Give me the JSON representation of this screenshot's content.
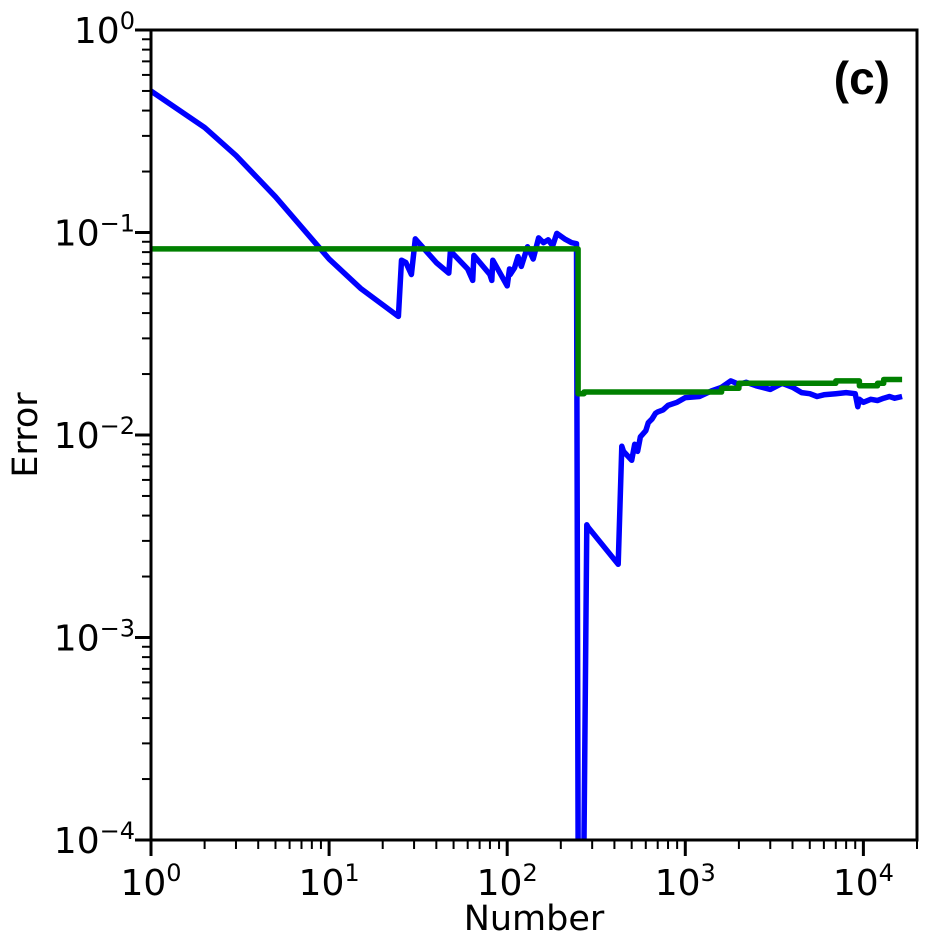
{
  "chart_data": {
    "type": "line",
    "panel_label": "(c)",
    "xlabel": "Number",
    "ylabel": "Error",
    "xscale": "log",
    "yscale": "log",
    "xlim": [
      1,
      20000
    ],
    "ylim": [
      0.0001,
      1
    ],
    "xticks": [
      {
        "value": 1,
        "base": "10",
        "exp": "0"
      },
      {
        "value": 10,
        "base": "10",
        "exp": "1"
      },
      {
        "value": 100,
        "base": "10",
        "exp": "2"
      },
      {
        "value": 1000,
        "base": "10",
        "exp": "3"
      },
      {
        "value": 10000,
        "base": "10",
        "exp": "4"
      }
    ],
    "yticks": [
      {
        "value": 1,
        "base": "10",
        "exp": "0"
      },
      {
        "value": 0.1,
        "base": "10",
        "exp": "−1"
      },
      {
        "value": 0.01,
        "base": "10",
        "exp": "−2"
      },
      {
        "value": 0.001,
        "base": "10",
        "exp": "−3"
      },
      {
        "value": 0.0001,
        "base": "10",
        "exp": "−4"
      }
    ],
    "grid": false,
    "series": [
      {
        "color": "#0000ff",
        "x": [
          1,
          2,
          3,
          5,
          10,
          15,
          24.5,
          25.5,
          27,
          29,
          30.5,
          40,
          47,
          48,
          60,
          64,
          65,
          80,
          82,
          83,
          100,
          103,
          104,
          110,
          115,
          120,
          130,
          140,
          150,
          160,
          170,
          180,
          190,
          210,
          230,
          245,
          250,
          255,
          260,
          270,
          280,
          285,
          420,
          430,
          440,
          450,
          500,
          520,
          540,
          560,
          600,
          620,
          650,
          680,
          700,
          750,
          800,
          900,
          1000,
          1200,
          1400,
          1600,
          1800,
          2000,
          2200,
          2500,
          3000,
          3500,
          4000,
          4500,
          5000,
          5500,
          6000,
          7000,
          8000,
          9000,
          9300,
          9500,
          10000,
          11000,
          12000,
          13000,
          14000,
          15000,
          16500
        ],
        "y": [
          0.5,
          0.33,
          0.24,
          0.15,
          0.074,
          0.053,
          0.0385,
          0.073,
          0.071,
          0.062,
          0.093,
          0.071,
          0.063,
          0.081,
          0.066,
          0.058,
          0.077,
          0.062,
          0.058,
          0.073,
          0.0545,
          0.066,
          0.062,
          0.067,
          0.076,
          0.068,
          0.085,
          0.074,
          0.094,
          0.089,
          0.092,
          0.086,
          0.099,
          0.093,
          0.089,
          0.088,
          0.0001,
          5e-05,
          5e-05,
          0.0001,
          0.0036,
          0.0035,
          0.0023,
          0.0045,
          0.0088,
          0.0083,
          0.0075,
          0.009,
          0.0083,
          0.0098,
          0.0105,
          0.0115,
          0.012,
          0.0128,
          0.013,
          0.0133,
          0.014,
          0.0145,
          0.0153,
          0.0155,
          0.0165,
          0.0172,
          0.0185,
          0.0178,
          0.0182,
          0.0175,
          0.0168,
          0.018,
          0.0172,
          0.0162,
          0.016,
          0.0155,
          0.0158,
          0.016,
          0.0162,
          0.016,
          0.0138,
          0.015,
          0.0145,
          0.015,
          0.0148,
          0.0152,
          0.0155,
          0.0152,
          0.0155
        ]
      },
      {
        "color": "#008000",
        "x": [
          1,
          250,
          250,
          270,
          270,
          1600,
          1600,
          2000,
          2000,
          7000,
          7000,
          9500,
          9500,
          12000,
          12000,
          13000,
          13000,
          16500
        ],
        "y": [
          0.083,
          0.083,
          0.016,
          0.016,
          0.0163,
          0.0163,
          0.017,
          0.017,
          0.018,
          0.018,
          0.0185,
          0.0185,
          0.0175,
          0.0175,
          0.018,
          0.018,
          0.0188,
          0.0188
        ]
      }
    ]
  }
}
